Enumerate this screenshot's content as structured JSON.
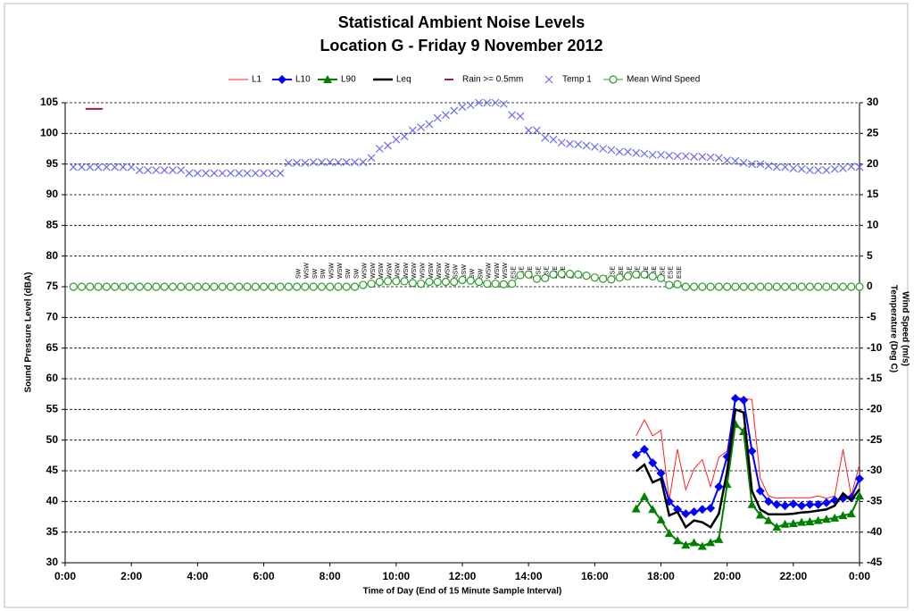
{
  "chart_data": {
    "type": "line",
    "title": "Statistical Ambient Noise Levels",
    "subtitle": "Location G - Friday 9 November 2012",
    "xlabel": "Time of Day (End of 15 Minute  Sample Interval)",
    "ylabel": "Sound Pressure Level (dBA)",
    "y2labels": [
      "Wind Speed (m/s)",
      "Temperature (Deg C)"
    ],
    "xlim": [
      0,
      24
    ],
    "xticks": [
      {
        "value": 0,
        "label": "0:00"
      },
      {
        "value": 2,
        "label": "2:00"
      },
      {
        "value": 4,
        "label": "4:00"
      },
      {
        "value": 6,
        "label": "6:00"
      },
      {
        "value": 8,
        "label": "8:00"
      },
      {
        "value": 10,
        "label": "10:00"
      },
      {
        "value": 12,
        "label": "12:00"
      },
      {
        "value": 14,
        "label": "14:00"
      },
      {
        "value": 16,
        "label": "16:00"
      },
      {
        "value": 18,
        "label": "18:00"
      },
      {
        "value": 20,
        "label": "20:00"
      },
      {
        "value": 22,
        "label": "22:00"
      },
      {
        "value": 24,
        "label": "0:00"
      }
    ],
    "ylim": [
      30,
      105
    ],
    "yticks": [
      30,
      35,
      40,
      45,
      50,
      55,
      60,
      65,
      70,
      75,
      80,
      85,
      90,
      95,
      100,
      105
    ],
    "y2lim": [
      -45,
      30
    ],
    "y2ticks": [
      -45,
      -40,
      -35,
      -30,
      -25,
      -20,
      -15,
      -10,
      -5,
      0,
      5,
      10,
      15,
      20,
      25,
      30
    ],
    "grid": true,
    "legend": "top",
    "x": [
      0.25,
      0.5,
      0.75,
      1,
      1.25,
      1.5,
      1.75,
      2,
      2.25,
      2.5,
      2.75,
      3,
      3.25,
      3.5,
      3.75,
      4,
      4.25,
      4.5,
      4.75,
      5,
      5.25,
      5.5,
      5.75,
      6,
      6.25,
      6.5,
      6.75,
      7,
      7.25,
      7.5,
      7.75,
      8,
      8.25,
      8.5,
      8.75,
      9,
      9.25,
      9.5,
      9.75,
      10,
      10.25,
      10.5,
      10.75,
      11,
      11.25,
      11.5,
      11.75,
      12,
      12.25,
      12.5,
      12.75,
      13,
      13.25,
      13.5,
      13.75,
      14,
      14.25,
      14.5,
      14.75,
      15,
      15.25,
      15.5,
      15.75,
      16,
      16.25,
      16.5,
      16.75,
      17,
      17.25,
      17.5,
      17.75,
      18,
      18.25,
      18.5,
      18.75,
      19,
      19.25,
      19.5,
      19.75,
      20,
      20.25,
      20.5,
      20.75,
      21,
      21.25,
      21.5,
      21.75,
      22,
      22.25,
      22.5,
      22.75,
      23,
      23.25,
      23.5,
      23.75,
      24
    ],
    "wind_direction": [
      null,
      null,
      null,
      null,
      null,
      null,
      null,
      null,
      null,
      null,
      null,
      null,
      null,
      null,
      null,
      null,
      null,
      null,
      null,
      null,
      null,
      null,
      null,
      null,
      null,
      null,
      null,
      "SW",
      "WSW",
      "SW",
      "SW",
      "WSW",
      "WSW",
      "SW",
      "SW",
      "WSW",
      "WSW",
      "WSW",
      "WSW",
      "WSW",
      "WSW",
      "WSW",
      "WSW",
      "WSW",
      "WSW",
      "WSW",
      "SSW",
      "SSW",
      "SW",
      "SW",
      "WSW",
      "WSW",
      "WSW",
      "ESE",
      "ESE",
      "ESE",
      "ESE",
      "ESE",
      "ESE",
      "ESE",
      "E",
      "E",
      "E",
      "E",
      "E",
      "ESE",
      "ESE",
      "ESE",
      "ESE",
      "ESE",
      "ESE",
      "ESE",
      "ESE",
      "ESE",
      null,
      null,
      null,
      null,
      null,
      null,
      null,
      null,
      null,
      null,
      null,
      null,
      null,
      null,
      null,
      null,
      null,
      null,
      null,
      null,
      null,
      null
    ],
    "series": [
      {
        "name": "L1",
        "color": "#ff2020",
        "line": true,
        "line_width": 1,
        "marker": "none",
        "axis": "y",
        "values": [
          null,
          null,
          null,
          null,
          null,
          null,
          null,
          null,
          null,
          null,
          null,
          null,
          null,
          null,
          null,
          null,
          null,
          null,
          null,
          null,
          null,
          null,
          null,
          null,
          null,
          null,
          null,
          null,
          null,
          null,
          null,
          null,
          null,
          null,
          null,
          null,
          null,
          null,
          null,
          null,
          null,
          null,
          null,
          null,
          null,
          null,
          null,
          null,
          null,
          null,
          null,
          null,
          null,
          null,
          null,
          null,
          null,
          null,
          null,
          null,
          null,
          null,
          null,
          null,
          null,
          null,
          null,
          null,
          50.7,
          53.3,
          50.7,
          51.6,
          40.2,
          48.5,
          41.9,
          45.3,
          46.8,
          42.4,
          47.2,
          48.2,
          56.9,
          56.8,
          56.6,
          43.8,
          40.9,
          40.5,
          40.6,
          40.6,
          40.6,
          40.6,
          40.9,
          40.5,
          40.9,
          48.5,
          40.9,
          46
        ]
      },
      {
        "name": "L10",
        "color": "#0000ff",
        "line": true,
        "line_width": 2,
        "marker": "diamond",
        "axis": "y",
        "values": [
          null,
          null,
          null,
          null,
          null,
          null,
          null,
          null,
          null,
          null,
          null,
          null,
          null,
          null,
          null,
          null,
          null,
          null,
          null,
          null,
          null,
          null,
          null,
          null,
          null,
          null,
          null,
          null,
          null,
          null,
          null,
          null,
          null,
          null,
          null,
          null,
          null,
          null,
          null,
          null,
          null,
          null,
          null,
          null,
          null,
          null,
          null,
          null,
          null,
          null,
          null,
          null,
          null,
          null,
          null,
          null,
          null,
          null,
          null,
          null,
          null,
          null,
          null,
          null,
          null,
          null,
          null,
          null,
          47.6,
          48.5,
          46.3,
          44.6,
          40,
          38.7,
          38,
          38.3,
          38.7,
          38.9,
          42.4,
          47.3,
          56.8,
          56.5,
          48.2,
          41.7,
          40,
          39.5,
          39.3,
          39.6,
          39.3,
          39.5,
          39.5,
          39.8,
          40.2,
          40.5,
          40.6,
          43.7
        ]
      },
      {
        "name": "L90",
        "color": "#008000",
        "line": true,
        "line_width": 2,
        "marker": "triangle",
        "axis": "y",
        "values": [
          null,
          null,
          null,
          null,
          null,
          null,
          null,
          null,
          null,
          null,
          null,
          null,
          null,
          null,
          null,
          null,
          null,
          null,
          null,
          null,
          null,
          null,
          null,
          null,
          null,
          null,
          null,
          null,
          null,
          null,
          null,
          null,
          null,
          null,
          null,
          null,
          null,
          null,
          null,
          null,
          null,
          null,
          null,
          null,
          null,
          null,
          null,
          null,
          null,
          null,
          null,
          null,
          null,
          null,
          null,
          null,
          null,
          null,
          null,
          null,
          null,
          null,
          null,
          null,
          null,
          null,
          null,
          null,
          38.8,
          40.8,
          38.7,
          37,
          34.8,
          33.6,
          32.9,
          33.3,
          32.7,
          33.3,
          33.8,
          42.8,
          52.6,
          51.4,
          39.5,
          37.8,
          36.9,
          35.8,
          36.3,
          36.4,
          36.6,
          36.7,
          36.9,
          37.1,
          37.3,
          37.7,
          38,
          40.9
        ]
      },
      {
        "name": "Leq",
        "color": "#000000",
        "line": true,
        "line_width": 2.5,
        "marker": "none",
        "axis": "y",
        "values": [
          null,
          null,
          null,
          null,
          null,
          null,
          null,
          null,
          null,
          null,
          null,
          null,
          null,
          null,
          null,
          null,
          null,
          null,
          null,
          null,
          null,
          null,
          null,
          null,
          null,
          null,
          null,
          null,
          null,
          null,
          null,
          null,
          null,
          null,
          null,
          null,
          null,
          null,
          null,
          null,
          null,
          null,
          null,
          null,
          null,
          null,
          null,
          null,
          null,
          null,
          null,
          null,
          null,
          null,
          null,
          null,
          null,
          null,
          null,
          null,
          null,
          null,
          null,
          null,
          null,
          null,
          null,
          null,
          44.9,
          46,
          43.1,
          43.7,
          37.7,
          38.3,
          35.8,
          36.9,
          36.6,
          35.8,
          38,
          44.9,
          55,
          54.5,
          41.7,
          38.7,
          37.9,
          37.9,
          37.9,
          38,
          38.2,
          38.3,
          38.5,
          38.7,
          39.3,
          41.3,
          40.2,
          42
        ]
      },
      {
        "name": "Rain >= 0.5mm",
        "color": "#9b2040",
        "line": false,
        "marker": "dash",
        "axis": "y",
        "values": [
          null,
          null,
          104,
          104,
          null,
          null,
          null,
          null,
          null,
          null,
          null,
          null,
          null,
          null,
          null,
          null,
          null,
          null,
          null,
          null,
          null,
          null,
          null,
          null,
          null,
          null,
          null,
          null,
          null,
          null,
          null,
          null,
          null,
          null,
          null,
          null,
          null,
          null,
          null,
          null,
          null,
          null,
          null,
          null,
          null,
          null,
          null,
          null,
          null,
          null,
          null,
          null,
          null,
          null,
          null,
          null,
          null,
          null,
          null,
          null,
          null,
          null,
          null,
          null,
          null,
          null,
          null,
          null,
          null,
          null,
          null,
          null,
          null,
          null,
          null,
          null,
          null,
          null,
          null,
          null,
          null,
          null,
          null,
          null,
          null,
          null,
          null,
          null,
          null,
          null,
          null,
          null,
          null,
          null,
          null,
          null
        ]
      },
      {
        "name": "Temp 1",
        "color": "#6b6bf0",
        "line": false,
        "marker": "x",
        "axis": "y2",
        "values": [
          19.5,
          19.5,
          19.5,
          19.5,
          19.5,
          19.5,
          19.5,
          19.5,
          19,
          19,
          19,
          19,
          19,
          19,
          18.5,
          18.5,
          18.5,
          18.5,
          18.5,
          18.5,
          18.5,
          18.5,
          18.5,
          18.5,
          18.5,
          18.5,
          20.2,
          20.2,
          20.2,
          20.3,
          20.3,
          20.3,
          20.3,
          20.3,
          20.3,
          20.3,
          21,
          22.5,
          23,
          24,
          24.5,
          25.5,
          26,
          26.5,
          27.5,
          28,
          28.7,
          29.3,
          29.6,
          30,
          30,
          30,
          29.8,
          28,
          27.8,
          25.5,
          25.5,
          24.3,
          24,
          23.5,
          23.3,
          23.2,
          23,
          22.8,
          22.5,
          22.3,
          22,
          22,
          21.8,
          21.7,
          21.5,
          21.5,
          21.4,
          21.3,
          21.3,
          21.2,
          21.2,
          21.1,
          21,
          20.6,
          20.5,
          20.2,
          20,
          20,
          19.7,
          19.5,
          19.5,
          19.3,
          19.2,
          19,
          19,
          19,
          19.2,
          19.3,
          19.6,
          19.5
        ]
      },
      {
        "name": "Mean Wind Speed",
        "color": "#2e9a2e",
        "line": true,
        "line_width": 1,
        "marker": "circle",
        "axis": "y2",
        "values": [
          0,
          0,
          0,
          0,
          0,
          0,
          0,
          0,
          0,
          0,
          0,
          0,
          0,
          0,
          0,
          0,
          0,
          0,
          0,
          0,
          0,
          0,
          0,
          0,
          0,
          0,
          0,
          0,
          0,
          0,
          0,
          0,
          0,
          0,
          0,
          0.3,
          0.5,
          0.8,
          0.9,
          0.9,
          0.9,
          0.6,
          0.5,
          0.8,
          0.8,
          0.8,
          0.8,
          1.1,
          1.0,
          0.8,
          0.5,
          0.5,
          0.4,
          0.5,
          1.9,
          2.0,
          1.3,
          1.4,
          2.0,
          2.1,
          2.1,
          2.0,
          1.8,
          1.5,
          1.3,
          1.2,
          1.5,
          1.7,
          2.0,
          2.0,
          1.7,
          1.4,
          0.3,
          0.4,
          0,
          0,
          0,
          0,
          0,
          0,
          0,
          0,
          0,
          0,
          0,
          0,
          0,
          0,
          0,
          0,
          0,
          0,
          0,
          0,
          0,
          0
        ]
      }
    ]
  }
}
